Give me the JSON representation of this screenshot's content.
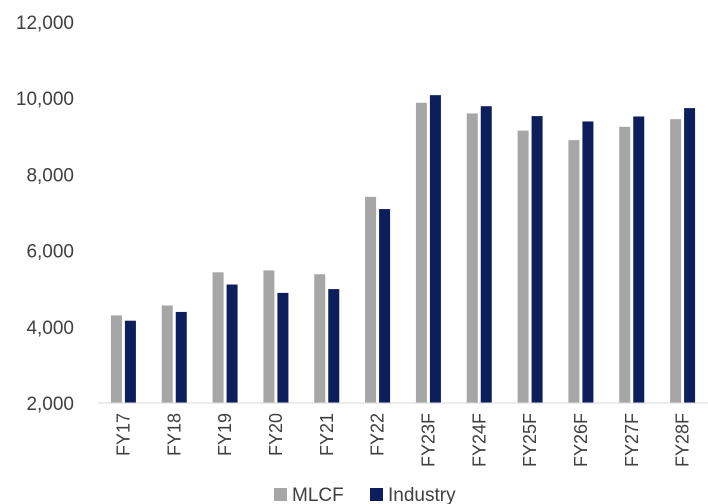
{
  "chart_data": {
    "type": "bar",
    "categories": [
      "FY17",
      "FY18",
      "FY19",
      "FY20",
      "FY21",
      "FY22",
      "FY23F",
      "FY24F",
      "FY25F",
      "FY26F",
      "FY27F",
      "FY28F"
    ],
    "series": [
      {
        "name": "MLCF",
        "color": "#a6a6a6",
        "values": [
          4300,
          4560,
          5430,
          5480,
          5380,
          7410,
          9880,
          9600,
          9150,
          8900,
          9250,
          9450
        ]
      },
      {
        "name": "Industry",
        "color": "#0d1e5c",
        "values": [
          4160,
          4390,
          5110,
          4890,
          4990,
          7090,
          10080,
          9790,
          9530,
          9390,
          9520,
          9740
        ]
      }
    ],
    "yticks": [
      "2,000",
      "4,000",
      "6,000",
      "8,000",
      "10,000",
      "12,000"
    ],
    "ylim": [
      2000,
      12000
    ],
    "title": "",
    "xlabel": "",
    "ylabel": "",
    "grid": false,
    "legend_position": "bottom"
  }
}
